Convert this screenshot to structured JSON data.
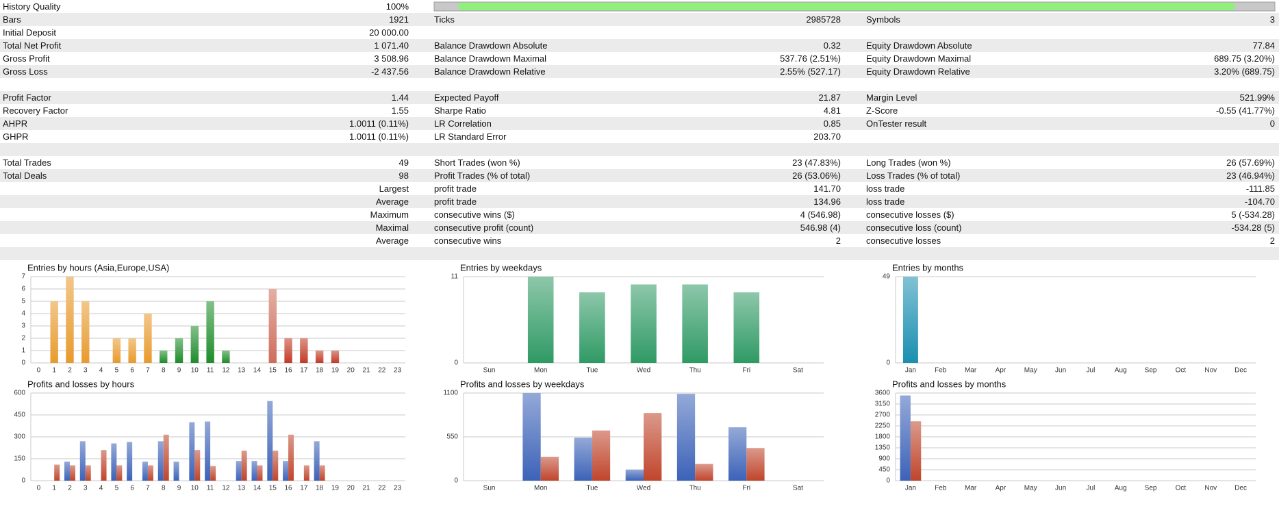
{
  "report": {
    "rows": [
      [
        {
          "label": "History Quality",
          "value": "100%"
        }
      ],
      [
        {
          "label": "Bars",
          "value": "1921"
        },
        {
          "label": "Ticks",
          "value": "2985728"
        },
        {
          "label": "Symbols",
          "value": "3"
        }
      ],
      [
        {
          "label": "Initial Deposit",
          "value": "20 000.00"
        }
      ],
      [
        {
          "label": "Total Net Profit",
          "value": "1 071.40"
        },
        {
          "label": "Balance Drawdown Absolute",
          "value": "0.32"
        },
        {
          "label": "Equity Drawdown Absolute",
          "value": "77.84"
        }
      ],
      [
        {
          "label": "Gross Profit",
          "value": "3 508.96"
        },
        {
          "label": "Balance Drawdown Maximal",
          "value": "537.76 (2.51%)"
        },
        {
          "label": "Equity Drawdown Maximal",
          "value": "689.75 (3.20%)"
        }
      ],
      [
        {
          "label": "Gross Loss",
          "value": "-2 437.56"
        },
        {
          "label": "Balance Drawdown Relative",
          "value": "2.55% (527.17)"
        },
        {
          "label": "Equity Drawdown Relative",
          "value": "3.20% (689.75)"
        }
      ],
      [],
      [
        {
          "label": "Profit Factor",
          "value": "1.44"
        },
        {
          "label": "Expected Payoff",
          "value": "21.87"
        },
        {
          "label": "Margin Level",
          "value": "521.99%"
        }
      ],
      [
        {
          "label": "Recovery Factor",
          "value": "1.55"
        },
        {
          "label": "Sharpe Ratio",
          "value": "4.81"
        },
        {
          "label": "Z-Score",
          "value": "-0.55 (41.77%)"
        }
      ],
      [
        {
          "label": "AHPR",
          "value": "1.0011 (0.11%)"
        },
        {
          "label": "LR Correlation",
          "value": "0.85"
        },
        {
          "label": "OnTester result",
          "value": "0"
        }
      ],
      [
        {
          "label": "GHPR",
          "value": "1.0011 (0.11%)"
        },
        {
          "label": "LR Standard Error",
          "value": "203.70"
        }
      ],
      [],
      [
        {
          "label": "Total Trades",
          "value": "49"
        },
        {
          "label": "Short Trades (won %)",
          "value": "23 (47.83%)"
        },
        {
          "label": "Long Trades (won %)",
          "value": "26 (57.69%)"
        }
      ],
      [
        {
          "label": "Total Deals",
          "value": "98"
        },
        {
          "label": "Profit Trades (% of total)",
          "value": "26 (53.06%)"
        },
        {
          "label": "Loss Trades (% of total)",
          "value": "23 (46.94%)"
        }
      ],
      [
        {
          "value": "Largest"
        },
        {
          "label": "profit trade",
          "value": "141.70"
        },
        {
          "label": "loss trade",
          "value": "-111.85"
        }
      ],
      [
        {
          "value": "Average"
        },
        {
          "label": "profit trade",
          "value": "134.96"
        },
        {
          "label": "loss trade",
          "value": "-104.70"
        }
      ],
      [
        {
          "value": "Maximum"
        },
        {
          "label": "consecutive wins ($)",
          "value": "4 (546.98)"
        },
        {
          "label": "consecutive losses ($)",
          "value": "5 (-534.28)"
        }
      ],
      [
        {
          "value": "Maximal"
        },
        {
          "label": "consecutive profit (count)",
          "value": "546.98 (4)"
        },
        {
          "label": "consecutive loss (count)",
          "value": "-534.28 (5)"
        }
      ],
      [
        {
          "value": "Average"
        },
        {
          "label": "consecutive wins",
          "value": "2"
        },
        {
          "label": "consecutive losses",
          "value": "2"
        }
      ],
      []
    ]
  },
  "chart_data": [
    {
      "type": "bar",
      "title": "Entries by hours (Asia,Europe,USA)",
      "categories": [
        0,
        1,
        2,
        3,
        4,
        5,
        6,
        7,
        8,
        9,
        10,
        11,
        12,
        13,
        14,
        15,
        16,
        17,
        18,
        19,
        20,
        21,
        22,
        23
      ],
      "ylim": [
        0,
        7
      ],
      "yticks": [
        0,
        1,
        2,
        3,
        4,
        5,
        6,
        7
      ],
      "series": [
        {
          "values": [
            0,
            5,
            7,
            5,
            0,
            2,
            2,
            4,
            1,
            2,
            3,
            5,
            1,
            0,
            0,
            6,
            2,
            2,
            1,
            1,
            0,
            0,
            0,
            0
          ],
          "colors": [
            "#e89a2c",
            "#e89a2c",
            "#e89a2c",
            "#e89a2c",
            "#e89a2c",
            "#e89a2c",
            "#e89a2c",
            "#e89a2c",
            "#1e8c2a",
            "#1e8c2a",
            "#1e8c2a",
            "#1e8c2a",
            "#1e8c2a",
            "#c23b26",
            "#c23b26",
            "#cf6d5c",
            "#c23b26",
            "#c23b26",
            "#c23b26",
            "#c23b26",
            "#c23b26",
            "#c23b26",
            "#c23b26",
            "#c23b26"
          ]
        }
      ]
    },
    {
      "type": "bar",
      "title": "Entries by weekdays",
      "categories": [
        "Sun",
        "Mon",
        "Tue",
        "Wed",
        "Thu",
        "Fri",
        "Sat"
      ],
      "ylim": [
        0,
        11
      ],
      "yticks": [
        0,
        11
      ],
      "series": [
        {
          "color": "#2f9a64",
          "values": [
            0,
            11,
            9,
            10,
            10,
            9,
            0
          ]
        }
      ]
    },
    {
      "type": "bar",
      "title": "Entries by months",
      "categories": [
        "Jan",
        "Feb",
        "Mar",
        "Apr",
        "May",
        "Jun",
        "Jul",
        "Aug",
        "Sep",
        "Oct",
        "Nov",
        "Dec"
      ],
      "ylim": [
        0,
        49
      ],
      "yticks": [
        0,
        49
      ],
      "series": [
        {
          "color": "#1a8fb0",
          "values": [
            49,
            0,
            0,
            0,
            0,
            0,
            0,
            0,
            0,
            0,
            0,
            0
          ]
        }
      ]
    },
    {
      "type": "bar",
      "title": "Profits and losses by hours",
      "categories": [
        0,
        1,
        2,
        3,
        4,
        5,
        6,
        7,
        8,
        9,
        10,
        11,
        12,
        13,
        14,
        15,
        16,
        17,
        18,
        19,
        20,
        21,
        22,
        23
      ],
      "ylim": [
        0,
        600
      ],
      "yticks": [
        0,
        150,
        300,
        450,
        600
      ],
      "series": [
        {
          "color": "#3c62b8",
          "values": [
            0,
            0,
            130,
            270,
            0,
            255,
            265,
            130,
            270,
            130,
            400,
            405,
            0,
            135,
            135,
            545,
            135,
            0,
            270,
            0,
            0,
            0,
            0,
            0
          ]
        },
        {
          "color": "#c0452c",
          "values": [
            0,
            110,
            105,
            105,
            210,
            105,
            0,
            105,
            315,
            0,
            210,
            100,
            0,
            205,
            105,
            205,
            315,
            105,
            105,
            0,
            0,
            0,
            0,
            0
          ]
        }
      ]
    },
    {
      "type": "bar",
      "title": "Profits and losses by weekdays",
      "categories": [
        "Sun",
        "Mon",
        "Tue",
        "Wed",
        "Thu",
        "Fri",
        "Sat"
      ],
      "ylim": [
        0,
        1100
      ],
      "yticks": [
        0,
        550,
        1100
      ],
      "series": [
        {
          "color": "#3c62b8",
          "values": [
            0,
            1100,
            540,
            140,
            1090,
            670,
            0
          ]
        },
        {
          "color": "#c0452c",
          "values": [
            0,
            300,
            630,
            850,
            210,
            410,
            0
          ]
        }
      ]
    },
    {
      "type": "bar",
      "title": "Profits and losses by months",
      "categories": [
        "Jan",
        "Feb",
        "Mar",
        "Apr",
        "May",
        "Jun",
        "Jul",
        "Aug",
        "Sep",
        "Oct",
        "Nov",
        "Dec"
      ],
      "ylim": [
        0,
        3600
      ],
      "yticks": [
        0,
        450,
        900,
        1350,
        1800,
        2250,
        2700,
        3150,
        3600
      ],
      "series": [
        {
          "color": "#3c62b8",
          "values": [
            3500,
            0,
            0,
            0,
            0,
            0,
            0,
            0,
            0,
            0,
            0,
            0
          ]
        },
        {
          "color": "#c0452c",
          "values": [
            2440,
            0,
            0,
            0,
            0,
            0,
            0,
            0,
            0,
            0,
            0,
            0
          ]
        }
      ]
    }
  ]
}
